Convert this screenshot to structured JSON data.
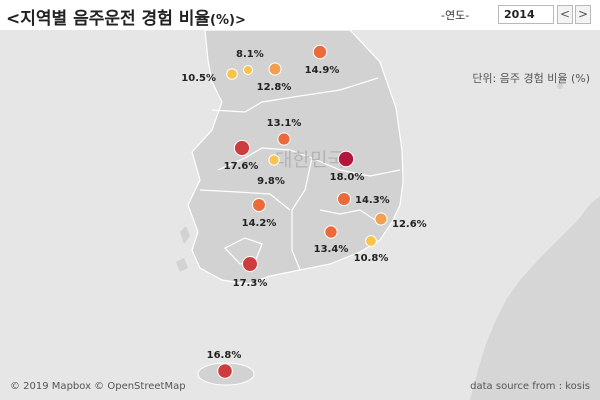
{
  "header": {
    "title_main": "<지역별 음주운전 경험 비율",
    "title_unit": "(%)>",
    "year_label": "-연도-",
    "year_value": "2014",
    "prev_label": "<",
    "next_label": ">"
  },
  "map": {
    "unit_note": "단위: 음주 경험 비율 (%)",
    "country_label": "대한민국",
    "attribution": "© 2019 Mapbox © OpenStreetMap",
    "source": "data source from : kosis"
  },
  "chart_data": {
    "type": "scatter",
    "title": "<지역별 음주운전 경험 비율(%)>",
    "year": "2014",
    "color_scale": [
      "#f7c34b",
      "#f0a050",
      "#ea6a3a",
      "#cc3d3d",
      "#b0173a"
    ],
    "series": [
      {
        "label": "8.1%",
        "value": 8.1
      },
      {
        "label": "10.5%",
        "value": 10.5
      },
      {
        "label": "12.8%",
        "value": 12.8
      },
      {
        "label": "14.9%",
        "value": 14.9
      },
      {
        "label": "13.1%",
        "value": 13.1
      },
      {
        "label": "17.6%",
        "value": 17.6
      },
      {
        "label": "9.8%",
        "value": 9.8
      },
      {
        "label": "18.0%",
        "value": 18.0
      },
      {
        "label": "14.3%",
        "value": 14.3
      },
      {
        "label": "14.2%",
        "value": 14.2
      },
      {
        "label": "12.6%",
        "value": 12.6
      },
      {
        "label": "13.4%",
        "value": 13.4
      },
      {
        "label": "10.8%",
        "value": 10.8
      },
      {
        "label": "17.3%",
        "value": 17.3
      },
      {
        "label": "16.8%",
        "value": 16.8
      }
    ]
  }
}
